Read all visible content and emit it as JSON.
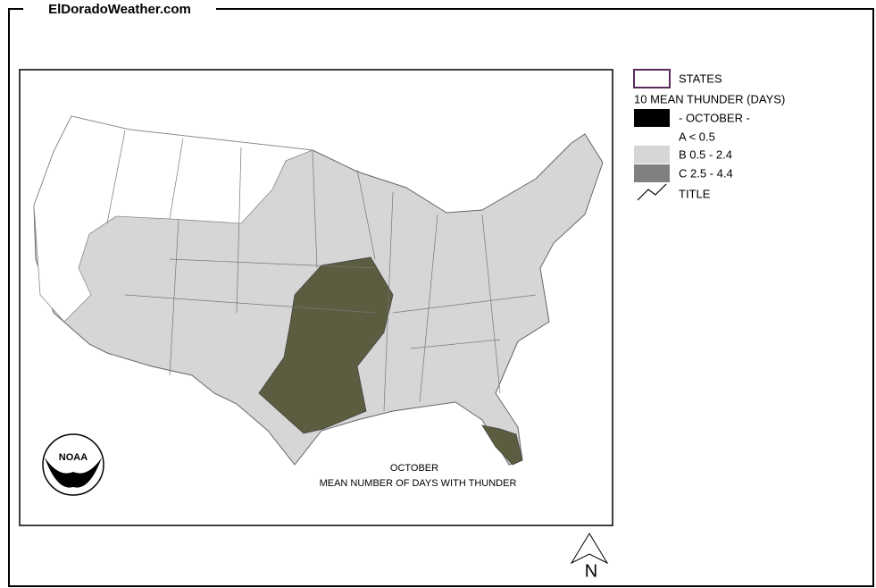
{
  "header": {
    "site": "ElDoradoWeather.com"
  },
  "legend": {
    "states": "STATES",
    "layer_title": "10 MEAN THUNDER (DAYS)",
    "items": [
      {
        "label": "- OCTOBER -"
      },
      {
        "label": "A < 0.5"
      },
      {
        "label": "B 0.5 - 2.4"
      },
      {
        "label": "C 2.5 - 4.4"
      }
    ],
    "title_item": "TITLE"
  },
  "map": {
    "title": "OCTOBER",
    "subtitle": "MEAN NUMBER OF DAYS WITH THUNDER",
    "logo": "NOAA",
    "north": "N"
  }
}
